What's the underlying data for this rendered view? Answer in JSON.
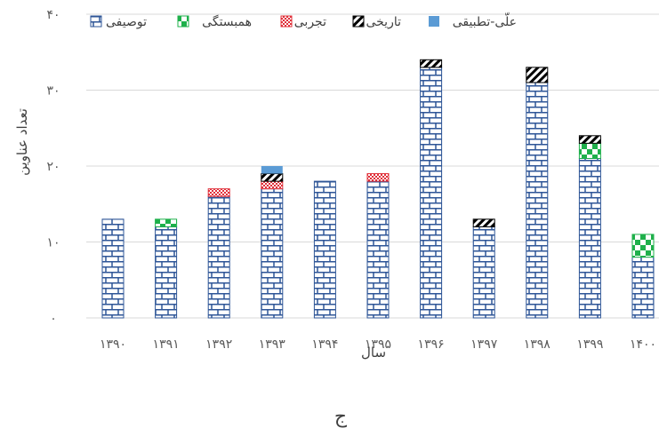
{
  "chart_data": {
    "type": "bar",
    "stacked": true,
    "categories": [
      "۱۳۹۰",
      "۱۳۹۱",
      "۱۳۹۲",
      "۱۳۹۳",
      "۱۳۹۴",
      "۱۳۹۵",
      "۱۳۹۶",
      "۱۳۹۷",
      "۱۳۹۸",
      "۱۳۹۹",
      "۱۴۰۰"
    ],
    "series": [
      {
        "name": "توصیفی",
        "color": "#2E5597",
        "values": [
          13,
          12,
          16,
          17,
          18,
          18,
          33,
          12,
          31,
          21,
          8
        ]
      },
      {
        "name": "همبستگی",
        "color": "#1FB04B",
        "values": [
          0,
          1,
          0,
          0,
          0,
          0,
          0,
          0,
          0,
          2,
          3
        ]
      },
      {
        "name": "تجربی",
        "color": "#E0303A",
        "values": [
          0,
          0,
          1,
          1,
          0,
          1,
          0,
          0,
          0,
          0,
          0
        ]
      },
      {
        "name": "تاریخی",
        "color": "#000000",
        "values": [
          0,
          0,
          0,
          1,
          0,
          0,
          1,
          1,
          2,
          1,
          0
        ]
      },
      {
        "name": "علّی-تطبیقی",
        "color": "#5B9BD5",
        "values": [
          0,
          0,
          0,
          1,
          0,
          0,
          0,
          0,
          0,
          0,
          0
        ]
      }
    ],
    "yticks": [
      "۰",
      "۱۰",
      "۲۰",
      "۳۰",
      "۴۰"
    ],
    "xlabel": "سال",
    "ylabel": "تعداد عناوین",
    "ylim": [
      0,
      40
    ],
    "grid": true,
    "legend": "top"
  },
  "caption": "ج"
}
